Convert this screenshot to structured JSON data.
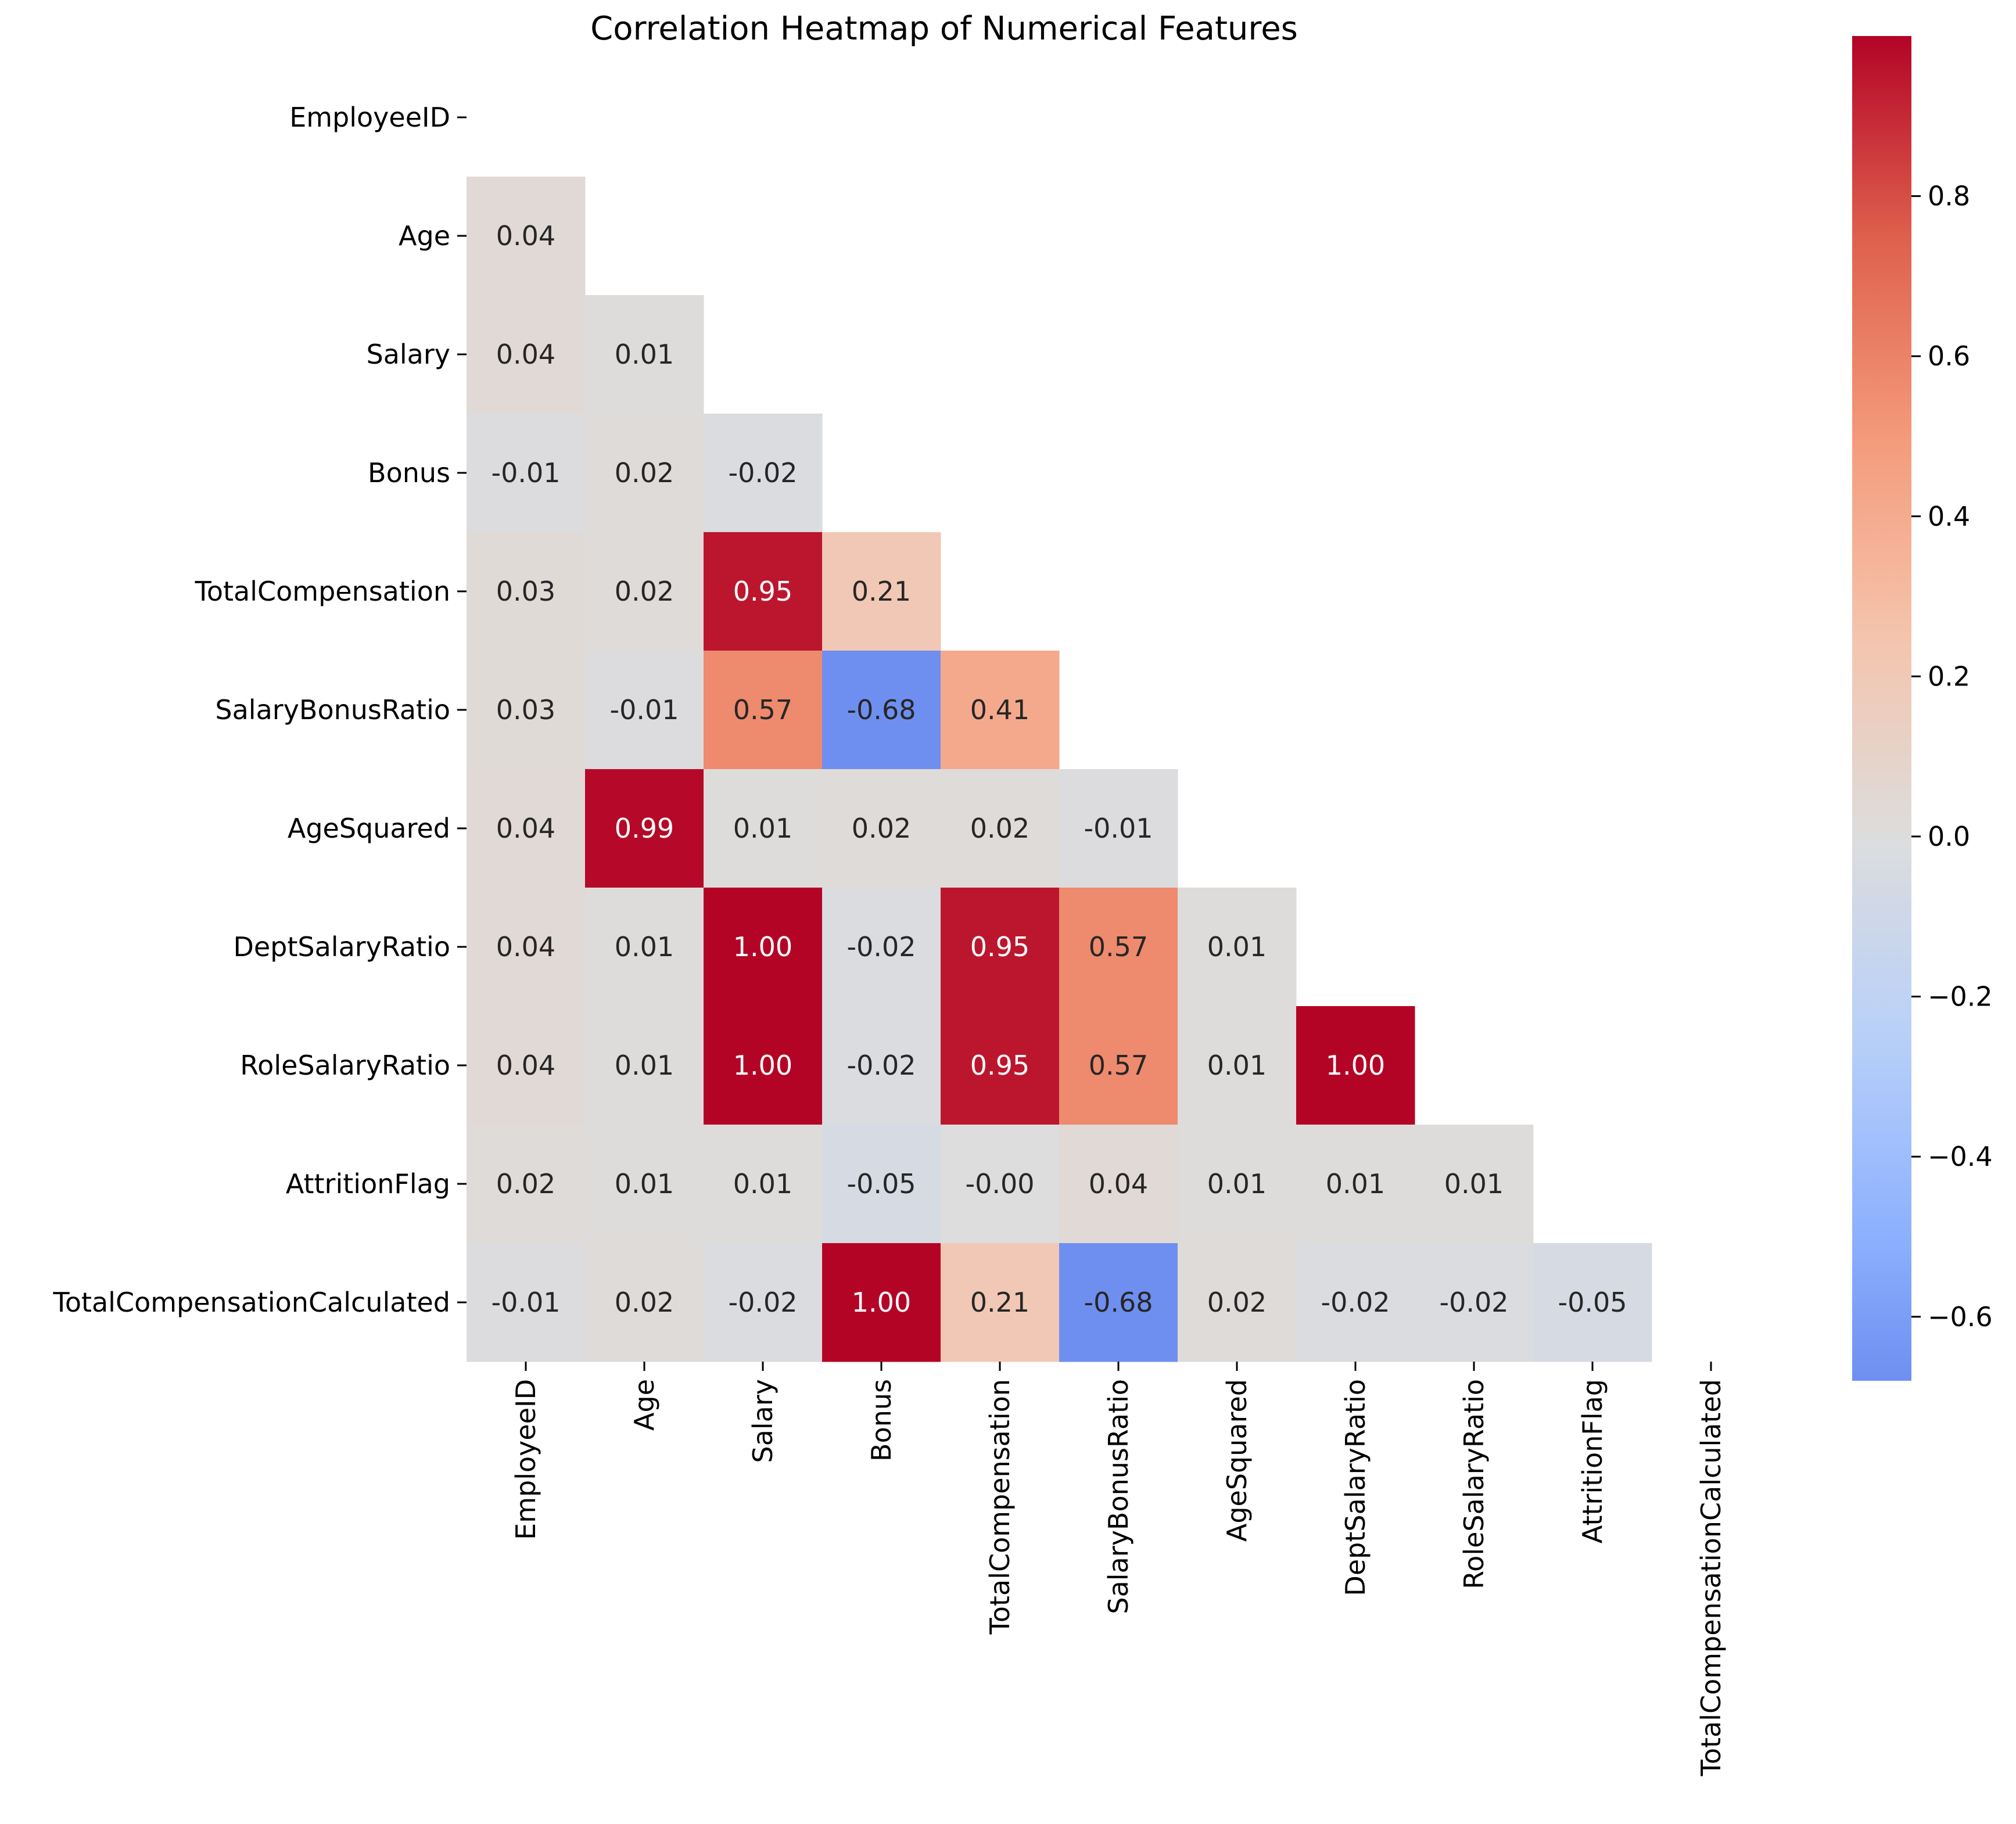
{
  "chart_data": {
    "type": "heatmap",
    "title": "Correlation Heatmap of Numerical Features",
    "xlabel": "",
    "ylabel": "",
    "labels": [
      "EmployeeID",
      "Age",
      "Salary",
      "Bonus",
      "TotalCompensation",
      "SalaryBonusRatio",
      "AgeSquared",
      "DeptSalaryRatio",
      "RoleSalaryRatio",
      "AttritionFlag",
      "TotalCompensationCalculated"
    ],
    "mask": "upper-triangle including diagonal (blank)",
    "matrix": [
      [
        null,
        null,
        null,
        null,
        null,
        null,
        null,
        null,
        null,
        null,
        null
      ],
      [
        0.04,
        null,
        null,
        null,
        null,
        null,
        null,
        null,
        null,
        null,
        null
      ],
      [
        0.04,
        0.01,
        null,
        null,
        null,
        null,
        null,
        null,
        null,
        null,
        null
      ],
      [
        -0.01,
        0.02,
        -0.02,
        null,
        null,
        null,
        null,
        null,
        null,
        null,
        null
      ],
      [
        0.03,
        0.02,
        0.95,
        0.21,
        null,
        null,
        null,
        null,
        null,
        null,
        null
      ],
      [
        0.03,
        -0.01,
        0.57,
        -0.68,
        0.41,
        null,
        null,
        null,
        null,
        null,
        null
      ],
      [
        0.04,
        0.99,
        0.01,
        0.02,
        0.02,
        -0.01,
        null,
        null,
        null,
        null,
        null
      ],
      [
        0.04,
        0.01,
        1.0,
        -0.02,
        0.95,
        0.57,
        0.01,
        null,
        null,
        null,
        null
      ],
      [
        0.04,
        0.01,
        1.0,
        -0.02,
        0.95,
        0.57,
        0.01,
        1.0,
        null,
        null,
        null
      ],
      [
        0.02,
        0.01,
        0.01,
        -0.05,
        -0.0,
        0.04,
        0.01,
        0.01,
        0.01,
        null,
        null
      ],
      [
        -0.01,
        0.02,
        -0.02,
        1.0,
        0.21,
        -0.68,
        0.02,
        -0.02,
        -0.02,
        -0.05,
        null
      ]
    ],
    "annotations": [
      [
        null,
        null,
        null,
        null,
        null,
        null,
        null,
        null,
        null,
        null,
        null
      ],
      [
        "0.04",
        null,
        null,
        null,
        null,
        null,
        null,
        null,
        null,
        null,
        null
      ],
      [
        "0.04",
        "0.01",
        null,
        null,
        null,
        null,
        null,
        null,
        null,
        null,
        null
      ],
      [
        "-0.01",
        "0.02",
        "-0.02",
        null,
        null,
        null,
        null,
        null,
        null,
        null,
        null
      ],
      [
        "0.03",
        "0.02",
        "0.95",
        "0.21",
        null,
        null,
        null,
        null,
        null,
        null,
        null
      ],
      [
        "0.03",
        "-0.01",
        "0.57",
        "-0.68",
        "0.41",
        null,
        null,
        null,
        null,
        null,
        null
      ],
      [
        "0.04",
        "0.99",
        "0.01",
        "0.02",
        "0.02",
        "-0.01",
        null,
        null,
        null,
        null,
        null
      ],
      [
        "0.04",
        "0.01",
        "1.00",
        "-0.02",
        "0.95",
        "0.57",
        "0.01",
        null,
        null,
        null,
        null
      ],
      [
        "0.04",
        "0.01",
        "1.00",
        "-0.02",
        "0.95",
        "0.57",
        "0.01",
        "1.00",
        null,
        null,
        null
      ],
      [
        "0.02",
        "0.01",
        "0.01",
        "-0.05",
        "-0.00",
        "0.04",
        "0.01",
        "0.01",
        "0.01",
        null,
        null
      ],
      [
        "-0.01",
        "0.02",
        "-0.02",
        "1.00",
        "0.21",
        "-0.68",
        "0.02",
        "-0.02",
        "-0.02",
        "-0.05",
        null
      ]
    ],
    "colormap": "coolwarm",
    "colorbar": {
      "vmin": -0.68,
      "vmax": 1.0,
      "center": 0,
      "ticks": [
        -0.6,
        -0.4,
        -0.2,
        0.0,
        0.2,
        0.4,
        0.6,
        0.8
      ],
      "tick_labels": [
        "−0.6",
        "−0.4",
        "−0.2",
        "0.0",
        "0.2",
        "0.4",
        "0.6",
        "0.8"
      ]
    },
    "grid": false,
    "legend": "colorbar-right"
  }
}
